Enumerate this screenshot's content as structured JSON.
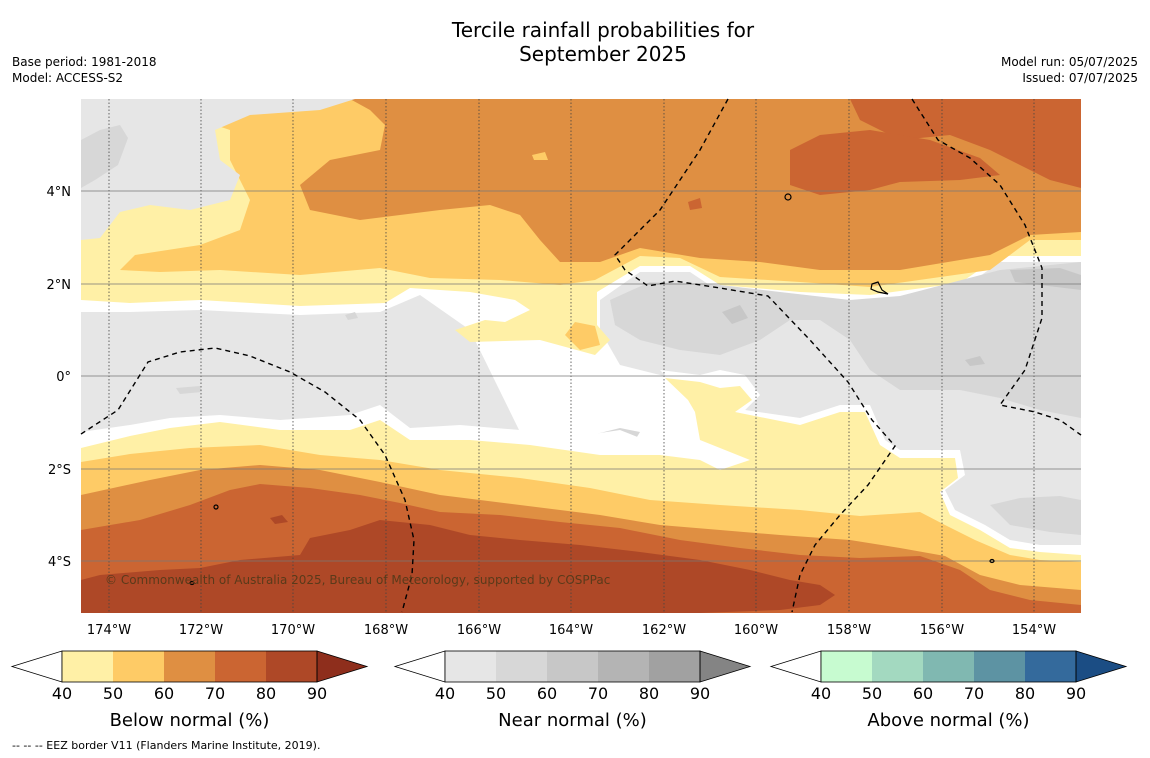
{
  "title_line1": "Tercile rainfall probabilities for",
  "title_line2": "September 2025",
  "base_period": "Base period: 1981-2018",
  "model": "Model: ACCESS-S2",
  "model_run": "Model run: 05/07/2025",
  "issued": "Issued: 07/07/2025",
  "copyright": "© Commonwealth of Australia 2025, Bureau of Meteorology, supported by COSPPac",
  "footnote": "--  --  -- EEZ border V11 (Flanders Marine Institute, 2019).",
  "map": {
    "lon_labels": [
      "174°W",
      "172°W",
      "170°W",
      "168°W",
      "166°W",
      "164°W",
      "162°W",
      "160°W",
      "158°W",
      "156°W",
      "154°W"
    ],
    "lat_labels": [
      "4°N",
      "2°N",
      "0°",
      "2°S",
      "4°S"
    ]
  },
  "legends": [
    {
      "label": "Below normal (%)",
      "ticks": [
        "40",
        "50",
        "60",
        "70",
        "80",
        "90"
      ],
      "colors": [
        "#fff0a6",
        "#fecb66",
        "#df8f42",
        "#cb6532",
        "#ae4827",
        "#8e2e1c"
      ]
    },
    {
      "label": "Near normal (%)",
      "ticks": [
        "40",
        "50",
        "60",
        "70",
        "80",
        "90"
      ],
      "colors": [
        "#e6e6e6",
        "#d7d7d7",
        "#c7c7c7",
        "#b4b4b4",
        "#a1a1a1",
        "#848484"
      ]
    },
    {
      "label": "Above normal (%)",
      "ticks": [
        "40",
        "50",
        "60",
        "70",
        "80",
        "90"
      ],
      "colors": [
        "#c7fbd0",
        "#a3d9c0",
        "#80b8b1",
        "#5d93a3",
        "#346a9c",
        "#1b4d84"
      ]
    }
  ]
}
